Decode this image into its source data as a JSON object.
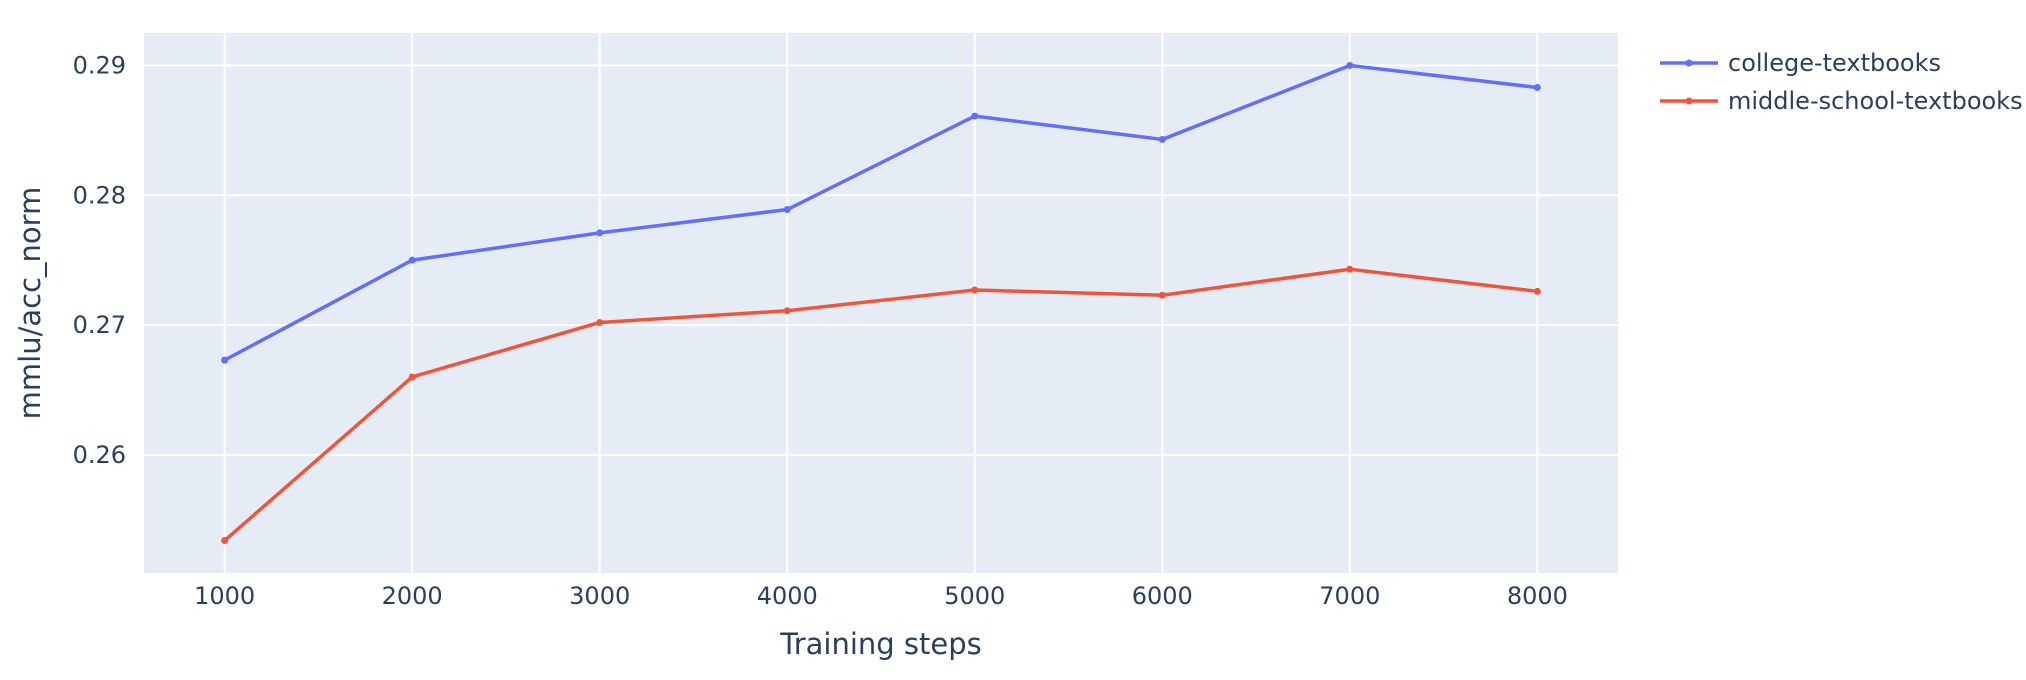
{
  "chart_data": {
    "type": "line",
    "xlabel": "Training steps",
    "ylabel": "mmlu/acc_norm",
    "x": [
      1000,
      2000,
      3000,
      4000,
      5000,
      6000,
      7000,
      8000
    ],
    "x_ticks": [
      "1000",
      "2000",
      "3000",
      "4000",
      "5000",
      "6000",
      "7000",
      "8000"
    ],
    "y_ticks": [
      "0.26",
      "0.27",
      "0.28",
      "0.29"
    ],
    "y_tick_values": [
      0.26,
      0.27,
      0.28,
      0.29
    ],
    "xlim": [
      570,
      8430
    ],
    "ylim": [
      0.2509,
      0.2925
    ],
    "grid": true,
    "legend_position": "top-right, outside plot",
    "series": [
      {
        "name": "college-textbooks",
        "color": "#636efa",
        "values": [
          0.2673,
          0.275,
          0.2771,
          0.2789,
          0.2861,
          0.2843,
          0.29,
          0.2883
        ]
      },
      {
        "name": "middle-school-textbooks",
        "color": "#ef553b",
        "values": [
          0.2534,
          0.266,
          0.2702,
          0.2711,
          0.2727,
          0.2723,
          0.2743,
          0.2726
        ]
      }
    ]
  }
}
